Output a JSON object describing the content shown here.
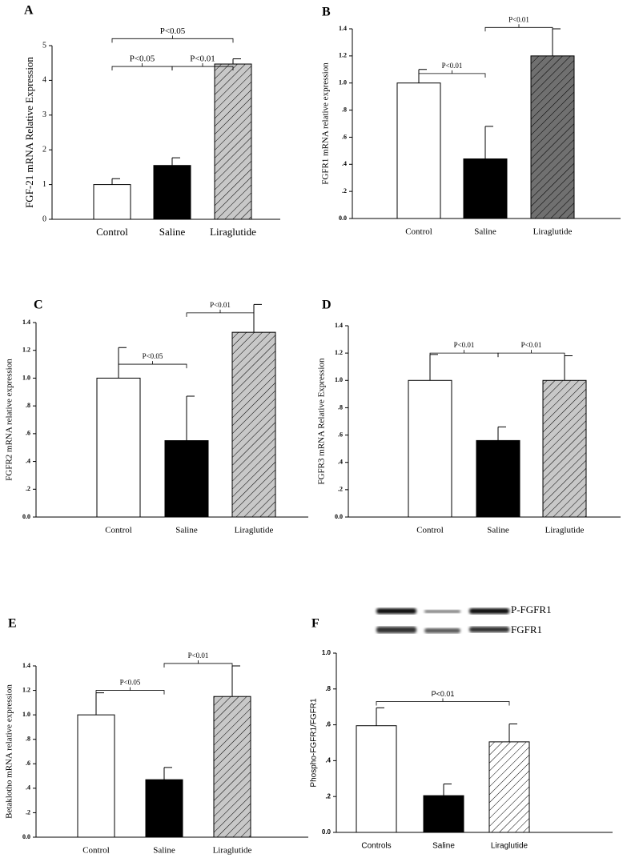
{
  "chart_data": [
    {
      "type": "bar",
      "panel": "A",
      "y_label": "FGF-21 mRNA Relative Expression",
      "categories": [
        "Control",
        "Saline",
        "Liraglutide"
      ],
      "values": [
        1.0,
        1.55,
        4.47
      ],
      "errors": [
        0.17,
        0.22,
        0.15
      ],
      "colors": [
        "#ffffff",
        "#000000",
        "#c8c8c8"
      ],
      "hatch": [
        false,
        false,
        true
      ],
      "ylim": [
        0,
        5
      ],
      "yticks": [
        0,
        1,
        2,
        3,
        4,
        5
      ],
      "annotations": [
        {
          "text": "P<0.05",
          "from": 0,
          "to": 1,
          "y": 4.4
        },
        {
          "text": "P<0.01",
          "from": 1,
          "to": 2,
          "y": 4.4
        },
        {
          "text": "P<0.05",
          "from": 0,
          "to": 2,
          "y": 5.2
        }
      ]
    },
    {
      "type": "bar",
      "panel": "B",
      "y_label": "FGFR1 mRNA relative expression",
      "categories": [
        "Control",
        "Saline",
        "Liraglutide"
      ],
      "values": [
        1.0,
        0.44,
        1.2
      ],
      "errors": [
        0.1,
        0.24,
        0.2
      ],
      "colors": [
        "#ffffff",
        "#000000",
        "#707070"
      ],
      "hatch": [
        false,
        false,
        true
      ],
      "ylim": [
        0,
        1.4
      ],
      "yticks": [
        {
          "value": 0,
          "label": "0.0"
        },
        {
          "value": 0.2,
          "label": ".2"
        },
        {
          "value": 0.4,
          "label": ".4"
        },
        {
          "value": 0.6,
          "label": ".6"
        },
        {
          "value": 0.8,
          "label": ".8"
        },
        {
          "value": 1.0,
          "label": "1.0"
        },
        {
          "value": 1.2,
          "label": "1.2"
        },
        {
          "value": 1.4,
          "label": "1.4"
        }
      ],
      "annotations": [
        {
          "text": "P<0.01",
          "from": 0,
          "to": 1,
          "y": 1.07
        },
        {
          "text": "P<0.01",
          "from": 1,
          "to": 2,
          "y": 1.41
        }
      ]
    },
    {
      "type": "bar",
      "panel": "C",
      "y_label": "FGFR2 mRNA relative expression",
      "categories": [
        "Control",
        "Saline",
        "Liraglutide"
      ],
      "values": [
        1.0,
        0.55,
        1.33
      ],
      "errors": [
        0.22,
        0.32,
        0.2
      ],
      "colors": [
        "#ffffff",
        "#000000",
        "#c8c8c8"
      ],
      "hatch": [
        false,
        false,
        true
      ],
      "ylim": [
        0,
        1.4
      ],
      "yticks": [
        {
          "value": 0,
          "label": "0.0"
        },
        {
          "value": 0.2,
          "label": ".2"
        },
        {
          "value": 0.4,
          "label": ".4"
        },
        {
          "value": 0.6,
          "label": ".6"
        },
        {
          "value": 0.8,
          "label": ".8"
        },
        {
          "value": 1.0,
          "label": "1.0"
        },
        {
          "value": 1.2,
          "label": "1.2"
        },
        {
          "value": 1.4,
          "label": "1.4"
        }
      ],
      "annotations": [
        {
          "text": "P<0.05",
          "from": 0,
          "to": 1,
          "y": 1.1
        },
        {
          "text": "P<0.01",
          "from": 1,
          "to": 2,
          "y": 1.47
        }
      ]
    },
    {
      "type": "bar",
      "panel": "D",
      "y_label": "FGFR3 mRNA Relative Expression",
      "categories": [
        "Control",
        "Saline",
        "Liraglutide"
      ],
      "values": [
        1.0,
        0.56,
        1.0
      ],
      "errors": [
        0.19,
        0.1,
        0.18
      ],
      "colors": [
        "#ffffff",
        "#000000",
        "#c8c8c8"
      ],
      "hatch": [
        false,
        false,
        true
      ],
      "ylim": [
        0,
        1.4
      ],
      "yticks": [
        {
          "value": 0,
          "label": "0.0"
        },
        {
          "value": 0.2,
          "label": ".2"
        },
        {
          "value": 0.4,
          "label": ".4"
        },
        {
          "value": 0.6,
          "label": ".6"
        },
        {
          "value": 0.8,
          "label": ".8"
        },
        {
          "value": 1.0,
          "label": "1.0"
        },
        {
          "value": 1.2,
          "label": "1.2"
        },
        {
          "value": 1.4,
          "label": "1.4"
        }
      ],
      "annotations": [
        {
          "text": "P<0.01",
          "from": 0,
          "to": 1,
          "y": 1.2
        },
        {
          "text": "P<0.01",
          "from": 1,
          "to": 2,
          "y": 1.2
        }
      ]
    },
    {
      "type": "bar",
      "panel": "E",
      "y_label": "Betaklotho mRNA relative expression",
      "categories": [
        "Control",
        "Saline",
        "Liraglutide"
      ],
      "values": [
        1.0,
        0.47,
        1.15
      ],
      "errors": [
        0.18,
        0.1,
        0.25
      ],
      "colors": [
        "#ffffff",
        "#000000",
        "#c8c8c8"
      ],
      "hatch": [
        false,
        false,
        true
      ],
      "ylim": [
        0,
        1.4
      ],
      "yticks": [
        {
          "value": 0,
          "label": "0.0"
        },
        {
          "value": 0.2,
          "label": ".2"
        },
        {
          "value": 0.4,
          "label": ".4"
        },
        {
          "value": 0.6,
          "label": ".6"
        },
        {
          "value": 0.8,
          "label": ".8"
        },
        {
          "value": 1.0,
          "label": "1.0"
        },
        {
          "value": 1.2,
          "label": "1.2"
        },
        {
          "value": 1.4,
          "label": "1.4"
        }
      ],
      "annotations": [
        {
          "text": "P<0.05",
          "from": 0,
          "to": 1,
          "y": 1.2
        },
        {
          "text": "P<0.01",
          "from": 1,
          "to": 2,
          "y": 1.42
        }
      ]
    },
    {
      "type": "bar",
      "panel": "F",
      "y_label": "Phospho-FGFR1/FGFR1",
      "blot_labels": [
        "P-FGFR1",
        "FGFR1"
      ],
      "categories": [
        "Controls",
        "Saline",
        "Liraglutide"
      ],
      "values": [
        0.595,
        0.205,
        0.505
      ],
      "errors": [
        0.1,
        0.065,
        0.1
      ],
      "colors": [
        "#ffffff",
        "#000000",
        "#ffffff"
      ],
      "hatch": [
        false,
        false,
        true
      ],
      "ylim": [
        0,
        1.0
      ],
      "yticks": [
        {
          "value": 0,
          "label": "0.0"
        },
        {
          "value": 0.2,
          "label": ".2"
        },
        {
          "value": 0.4,
          "label": ".4"
        },
        {
          "value": 0.6,
          "label": ".6"
        },
        {
          "value": 0.8,
          "label": ".8"
        },
        {
          "value": 1.0,
          "label": "1.0"
        }
      ],
      "annotations": [
        {
          "text": "P<0.01",
          "from": 0,
          "to": 2,
          "y": 0.73
        }
      ]
    }
  ]
}
